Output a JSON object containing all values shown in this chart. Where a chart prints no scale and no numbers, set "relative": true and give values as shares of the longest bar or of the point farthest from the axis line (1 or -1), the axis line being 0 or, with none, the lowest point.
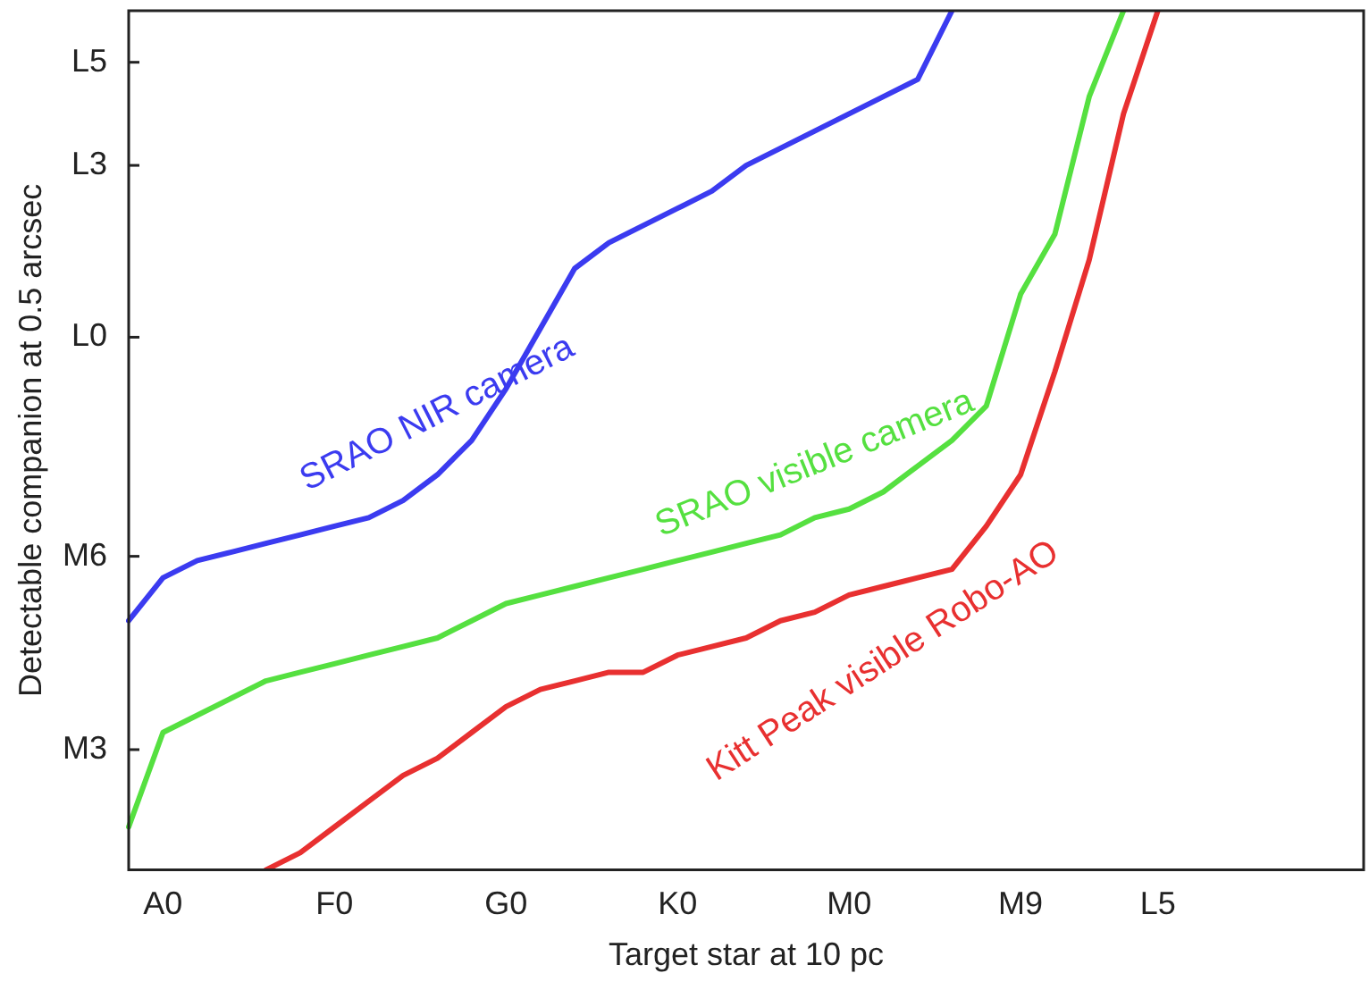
{
  "chart_data": {
    "type": "line",
    "relative": true,
    "xlabel": "Target star at 10 pc",
    "ylabel": "Detectable companion at 0.5 arcsec",
    "categories": [
      null,
      "A0",
      null,
      null,
      null,
      null,
      "F0",
      null,
      null,
      null,
      null,
      "G0",
      null,
      null,
      null,
      null,
      "K0",
      null,
      null,
      null,
      null,
      "M0",
      null,
      null,
      null,
      null,
      "M9",
      null,
      null,
      null,
      "L5",
      null,
      null,
      null,
      null,
      null,
      null
    ],
    "annotations": [
      "M3",
      "M6",
      "L0",
      "L3",
      "L5"
    ],
    "grid": false,
    "legend": false,
    "marker": "none",
    "line_style": "solid",
    "series": [
      {
        "name": "SRAO NIR camera",
        "color": "#3b3bf0",
        "values": [
          0.29,
          0.34,
          0.36,
          0.37,
          0.38,
          0.39,
          0.4,
          0.41,
          0.43,
          0.46,
          0.5,
          0.56,
          0.63,
          0.7,
          0.73,
          0.75,
          0.77,
          0.79,
          0.82,
          0.84,
          0.86,
          0.88,
          0.9,
          0.92,
          1,
          null,
          null,
          null,
          null,
          null,
          null,
          null,
          null,
          null,
          null,
          null,
          null
        ]
      },
      {
        "name": "SRAO visible camera",
        "color": "#55e040",
        "values": [
          0.05,
          0.16,
          0.18,
          0.2,
          0.22,
          0.23,
          0.24,
          0.25,
          0.26,
          0.27,
          0.29,
          0.31,
          0.32,
          0.33,
          0.34,
          0.35,
          0.36,
          0.37,
          0.38,
          0.39,
          0.41,
          0.42,
          0.44,
          0.47,
          0.5,
          0.54,
          0.67,
          0.74,
          0.9,
          1,
          null,
          null,
          null,
          null,
          null,
          null,
          null
        ]
      },
      {
        "name": "Kitt Peak visible Robo-AO",
        "color": "#e83030",
        "values": [
          null,
          null,
          null,
          null,
          0,
          0.02,
          0.05,
          0.08,
          0.11,
          0.13,
          0.16,
          0.19,
          0.21,
          0.22,
          0.23,
          0.23,
          0.25,
          0.26,
          0.27,
          0.29,
          0.3,
          0.32,
          0.33,
          0.34,
          0.35,
          0.4,
          0.46,
          0.58,
          0.71,
          0.88,
          1,
          null,
          null,
          null,
          null,
          null,
          null
        ]
      }
    ]
  }
}
